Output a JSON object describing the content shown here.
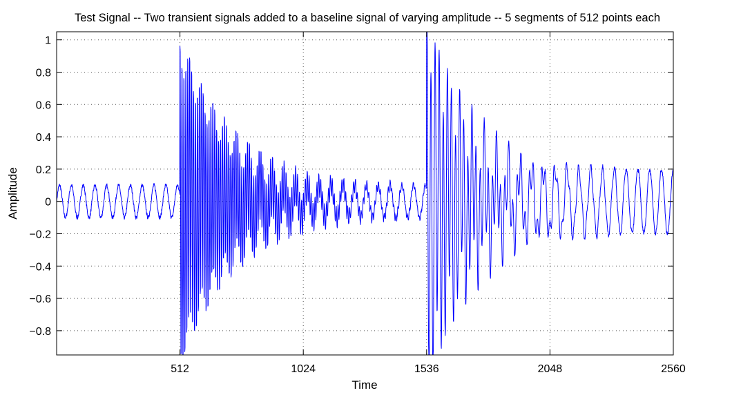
{
  "chart_data": {
    "type": "line",
    "title": "Test Signal -- Two transient signals added to a baseline signal of varying amplitude -- 5 segments of 512 points each",
    "xlabel": "Time",
    "ylabel": "Amplitude",
    "xlim": [
      0,
      2560
    ],
    "ylim": [
      -0.95,
      1.05
    ],
    "x_ticks": [
      512,
      1024,
      1536,
      2048,
      2560
    ],
    "y_ticks": [
      1,
      0.8,
      0.6,
      0.4,
      0.2,
      0,
      -0.2,
      -0.4,
      -0.6,
      -0.8
    ],
    "y_tick_labels": [
      "1",
      "0.8",
      "0.6",
      "0.4",
      "0.2",
      "0",
      "−0.2",
      "−0.4",
      "−0.6",
      "−0.8"
    ],
    "grid": true,
    "series": [
      {
        "color": "#0000ff",
        "baseline": {
          "period": 49,
          "amplitude_by_segment": [
            0.1,
            0.1,
            0.1,
            0.2,
            0.2
          ],
          "segment_length": 512
        },
        "transients": [
          {
            "start": 512,
            "initial_amplitude": 1.0,
            "decay_length": 230,
            "period": 8
          },
          {
            "start": 1536,
            "initial_amplitude": 1.1,
            "decay_length": 190,
            "period": 17
          }
        ]
      }
    ]
  }
}
